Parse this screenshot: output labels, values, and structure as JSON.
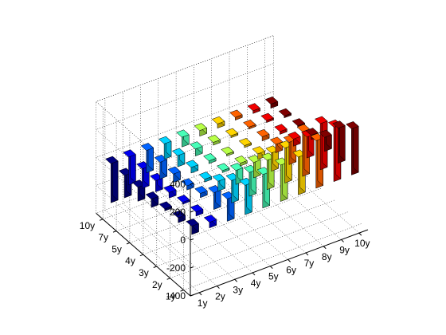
{
  "chart_data": {
    "type": "bar3",
    "title": "",
    "xlabel": "",
    "ylabel": "",
    "zlabel": "",
    "x_categories": [
      "1y",
      "2y",
      "3y",
      "4y",
      "5y",
      "6y",
      "7y",
      "8y",
      "9y",
      "10y"
    ],
    "y_categories": [
      "1y",
      "2y",
      "3y",
      "4y",
      "5y",
      "7y",
      "10y"
    ],
    "z_ticks": [
      -400,
      -200,
      0,
      200,
      400
    ],
    "zlim": [
      -400,
      400
    ],
    "grid": true,
    "colormap": "jet",
    "values": [
      [
        60,
        35,
        0,
        -60,
        -100,
        -160,
        -280
      ],
      [
        40,
        30,
        0,
        -40,
        -80,
        -140,
        -200
      ],
      [
        160,
        120,
        30,
        -30,
        -60,
        -120,
        -160
      ],
      [
        210,
        160,
        70,
        -20,
        -40,
        -80,
        -110
      ],
      [
        240,
        170,
        100,
        10,
        -20,
        -50,
        -70
      ],
      [
        260,
        210,
        110,
        20,
        -10,
        -20,
        -40
      ],
      [
        270,
        250,
        130,
        40,
        10,
        -10,
        -30
      ],
      [
        340,
        320,
        160,
        60,
        30,
        10,
        -20
      ],
      [
        390,
        330,
        150,
        50,
        20,
        10,
        -20
      ],
      [
        330,
        250,
        100,
        30,
        10,
        -10,
        -30
      ]
    ]
  }
}
